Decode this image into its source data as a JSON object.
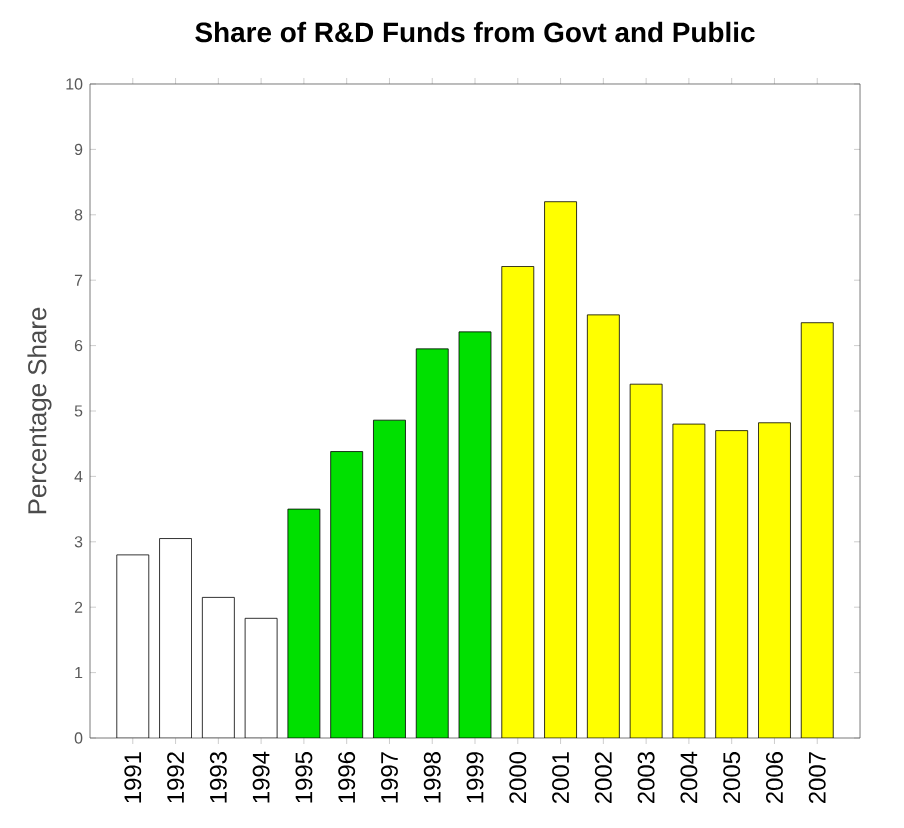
{
  "chart_data": {
    "type": "bar",
    "title": "Share of R&D Funds from Govt and Public",
    "ylabel": "Percentage Share",
    "categories": [
      "1991",
      "1992",
      "1993",
      "1994",
      "1995",
      "1996",
      "1997",
      "1998",
      "1999",
      "2000",
      "2001",
      "2002",
      "2003",
      "2004",
      "2005",
      "2006",
      "2007"
    ],
    "values": [
      2.8,
      3.05,
      2.15,
      1.83,
      3.5,
      4.38,
      4.86,
      5.95,
      6.21,
      7.21,
      8.2,
      6.47,
      5.41,
      4.8,
      4.7,
      4.82,
      6.35
    ],
    "colors": [
      "#ffffff",
      "#ffffff",
      "#ffffff",
      "#ffffff",
      "#00e000",
      "#00e000",
      "#00e000",
      "#00e000",
      "#00e000",
      "#ffff00",
      "#ffff00",
      "#ffff00",
      "#ffff00",
      "#ffff00",
      "#ffff00",
      "#ffff00",
      "#ffff00"
    ],
    "ylim": [
      0,
      10
    ],
    "yticks": [
      0,
      1,
      2,
      3,
      4,
      5,
      6,
      7,
      8,
      9,
      10
    ],
    "grid": false
  }
}
